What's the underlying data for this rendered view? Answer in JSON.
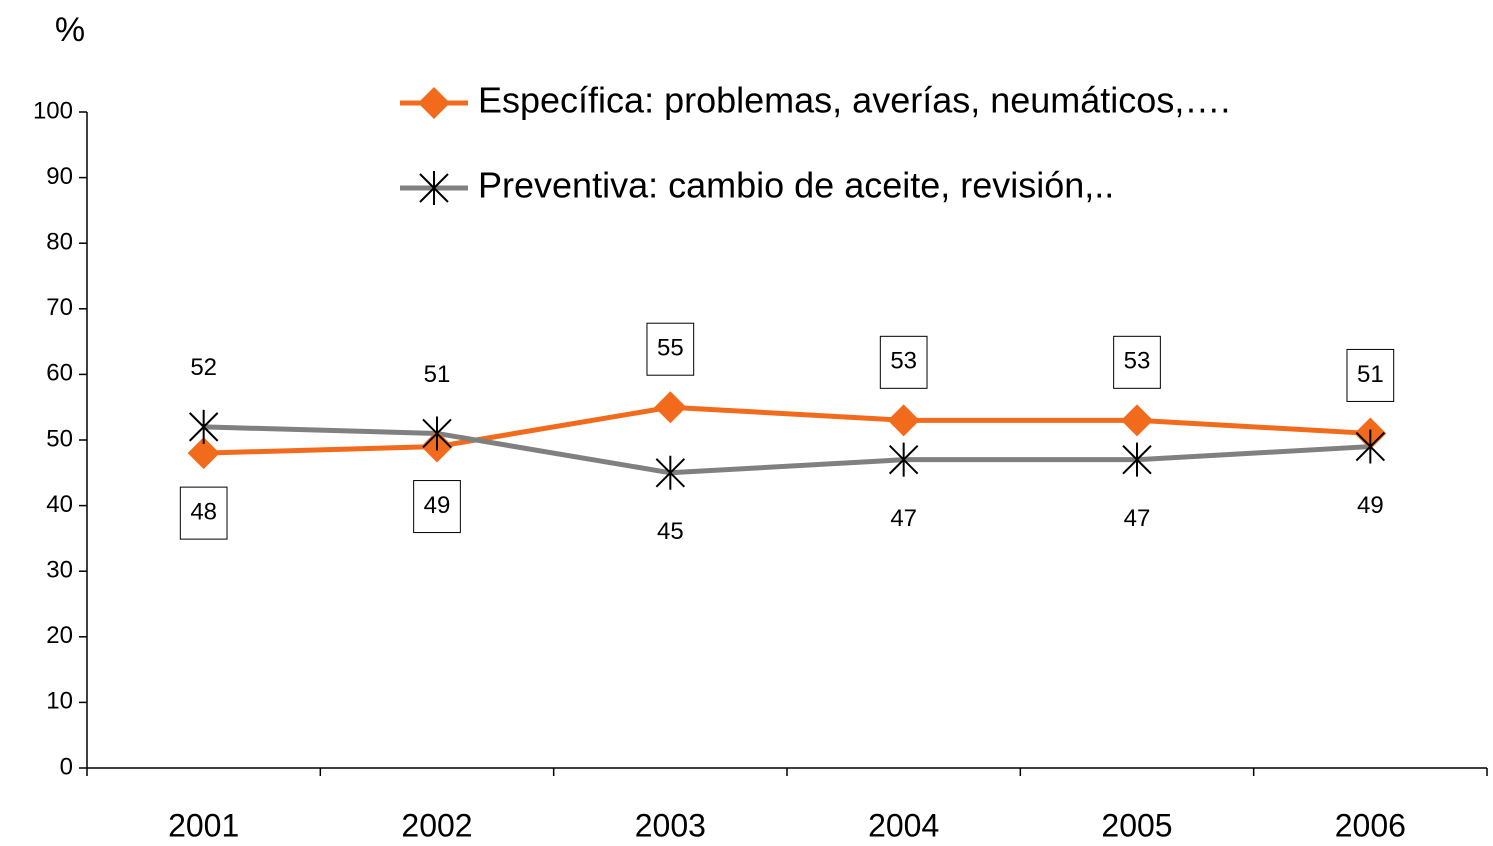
{
  "chart_data": {
    "type": "line",
    "y_label": "%",
    "categories": [
      "2001",
      "2002",
      "2003",
      "2004",
      "2005",
      "2006"
    ],
    "series": [
      {
        "name": "Específica: problemas, averías, neumáticos,….",
        "color": "#f26b1d",
        "marker": "diamond",
        "boxed_labels": true,
        "values": [
          48,
          49,
          55,
          53,
          53,
          51
        ]
      },
      {
        "name": "Preventiva: cambio de aceite, revisión,..",
        "color": "#808080",
        "marker": "asterisk",
        "boxed_labels": false,
        "values": [
          52,
          51,
          45,
          47,
          47,
          49
        ]
      }
    ],
    "ylim": [
      0,
      100
    ],
    "yticks": [
      0,
      10,
      20,
      30,
      40,
      50,
      60,
      70,
      80,
      90,
      100
    ],
    "grid": false,
    "legend": "top"
  }
}
